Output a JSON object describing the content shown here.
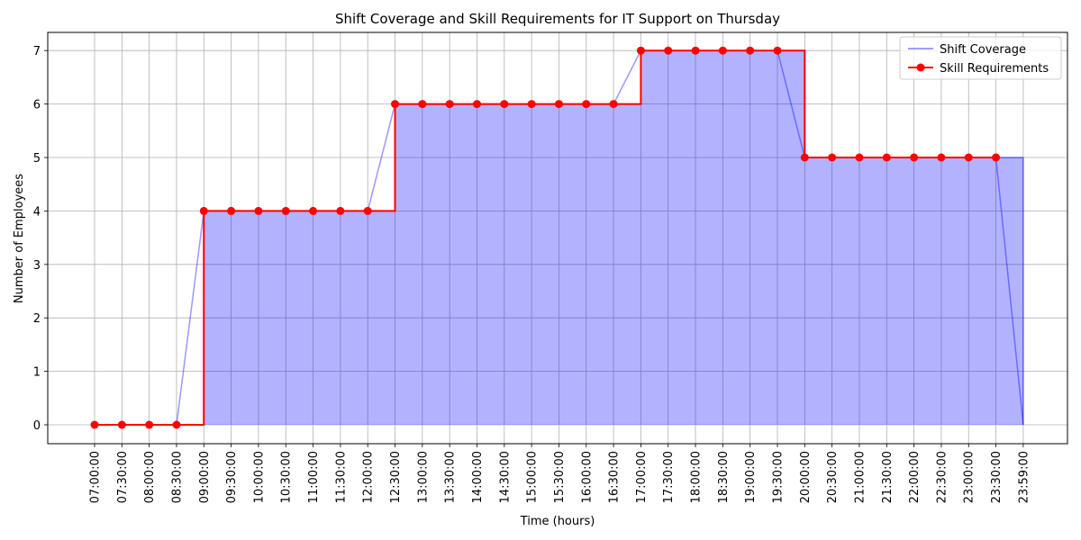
{
  "chart_data": {
    "type": "area",
    "title": "Shift Coverage and Skill Requirements for IT Support on Thursday",
    "xlabel": "Time (hours)",
    "ylabel": "Number of Employees",
    "ylim": [
      0,
      7
    ],
    "yticks": [
      0,
      1,
      2,
      3,
      4,
      5,
      6,
      7
    ],
    "grid": true,
    "legend_position": "top-right",
    "x": [
      "07:00:00",
      "07:30:00",
      "08:00:00",
      "08:30:00",
      "09:00:00",
      "09:30:00",
      "10:00:00",
      "10:30:00",
      "11:00:00",
      "11:30:00",
      "12:00:00",
      "12:30:00",
      "13:00:00",
      "13:30:00",
      "14:00:00",
      "14:30:00",
      "15:00:00",
      "15:30:00",
      "16:00:00",
      "16:30:00",
      "17:00:00",
      "17:30:00",
      "18:00:00",
      "18:30:00",
      "19:00:00",
      "19:30:00",
      "20:00:00",
      "20:30:00",
      "21:00:00",
      "21:30:00",
      "22:00:00",
      "22:30:00",
      "23:00:00",
      "23:30:00",
      "23:59:00"
    ],
    "series": [
      {
        "name": "Shift Coverage",
        "style": "area-step",
        "color": "#0000ff",
        "values": [
          0,
          0,
          0,
          0,
          4,
          4,
          4,
          4,
          4,
          4,
          4,
          6,
          6,
          6,
          6,
          6,
          6,
          6,
          6,
          6,
          7,
          7,
          7,
          7,
          7,
          7,
          5,
          5,
          5,
          5,
          5,
          5,
          5,
          5,
          0
        ]
      },
      {
        "name": "Skill Requirements",
        "style": "step-markers",
        "color": "#ff0000",
        "values": [
          0,
          0,
          0,
          0,
          4,
          4,
          4,
          4,
          4,
          4,
          4,
          6,
          6,
          6,
          6,
          6,
          6,
          6,
          6,
          6,
          7,
          7,
          7,
          7,
          7,
          7,
          5,
          5,
          5,
          5,
          5,
          5,
          5,
          5,
          null
        ]
      }
    ]
  }
}
